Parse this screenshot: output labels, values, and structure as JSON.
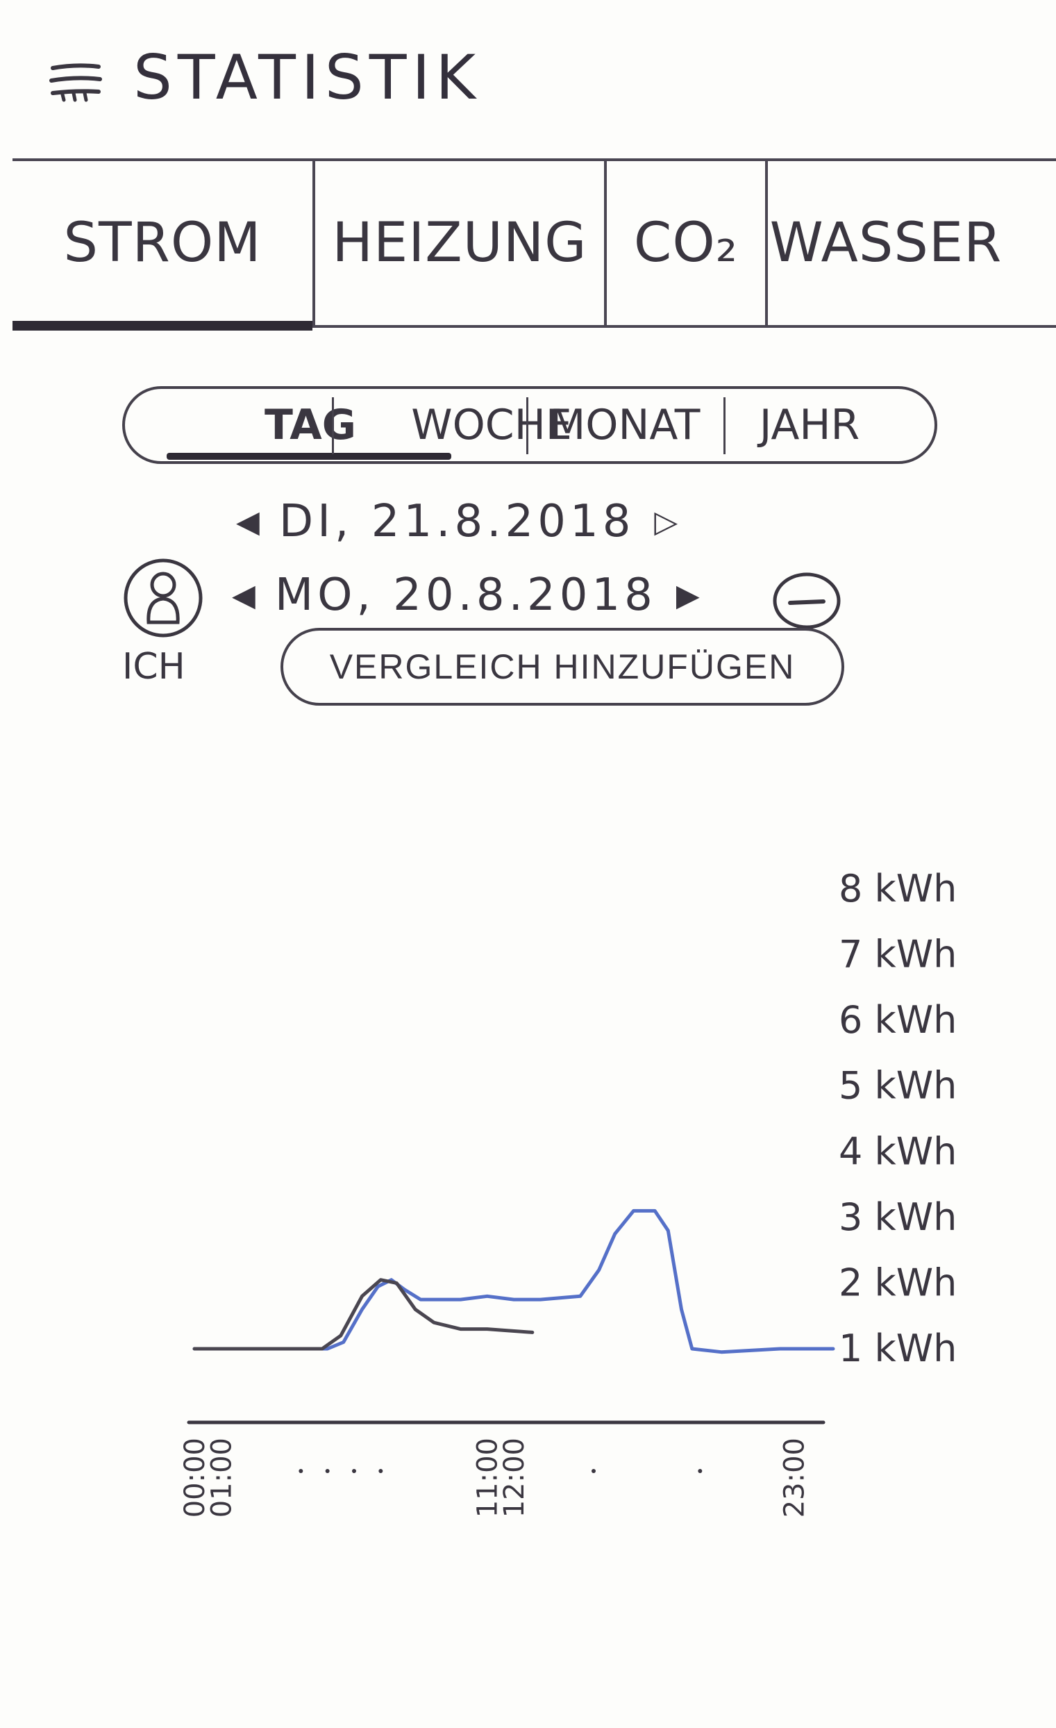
{
  "header": {
    "title": "STATISTIK",
    "menu_icon": "hamburger-menu-icon"
  },
  "tabs": [
    {
      "label": "STROM",
      "active": true
    },
    {
      "label": "HEIZUNG",
      "active": false
    },
    {
      "label": "CO₂",
      "active": false
    },
    {
      "label": "WASSER",
      "active": false
    }
  ],
  "periods": [
    {
      "label": "TAG",
      "active": true
    },
    {
      "label": "WOCHE",
      "active": false
    },
    {
      "label": "MONAT",
      "active": false
    },
    {
      "label": "JAHR",
      "active": false
    }
  ],
  "dates": {
    "primary": "DI, 21.8.2018",
    "comparison": "MO, 20.8.2018"
  },
  "user": {
    "label": "ICH",
    "icon": "person-icon"
  },
  "compare_button": "VERGLEICH HINZUFÜGEN",
  "colors": {
    "primary_series": "#5570c8",
    "comparison_series": "#4a4650",
    "ink": "#3a3640"
  },
  "chart_data": {
    "type": "line",
    "y_ticks": [
      "8 kWh",
      "7 kWh",
      "6 kWh",
      "5 kWh",
      "4 kWh",
      "3 kWh",
      "2 kWh",
      "1 kWh"
    ],
    "x_ticks": [
      "00:00",
      "01:00",
      "11:00",
      "12:00",
      "23:00"
    ],
    "ylim": [
      1,
      8
    ],
    "xlim": [
      0,
      24
    ],
    "y_axis_position": "right",
    "grid": false,
    "series": [
      {
        "color": "#5570c8",
        "points": [
          [
            0,
            1.0
          ],
          [
            5.0,
            1.0
          ],
          [
            5.6,
            1.1
          ],
          [
            6.3,
            1.6
          ],
          [
            6.9,
            1.95
          ],
          [
            7.4,
            2.05
          ],
          [
            7.9,
            1.9
          ],
          [
            8.5,
            1.75
          ],
          [
            10.0,
            1.75
          ],
          [
            11.0,
            1.8
          ],
          [
            12.0,
            1.75
          ],
          [
            13.0,
            1.75
          ],
          [
            14.5,
            1.8
          ],
          [
            15.2,
            2.2
          ],
          [
            15.8,
            2.75
          ],
          [
            16.5,
            3.1
          ],
          [
            17.3,
            3.1
          ],
          [
            17.8,
            2.8
          ],
          [
            18.3,
            1.6
          ],
          [
            18.7,
            1.0
          ],
          [
            19.8,
            0.95
          ],
          [
            22.0,
            1.0
          ],
          [
            24.0,
            1.0
          ]
        ]
      },
      {
        "color": "#4a4650",
        "points": [
          [
            0,
            1.0
          ],
          [
            4.8,
            1.0
          ],
          [
            5.5,
            1.2
          ],
          [
            6.3,
            1.8
          ],
          [
            7.0,
            2.05
          ],
          [
            7.6,
            2.0
          ],
          [
            8.3,
            1.6
          ],
          [
            9.0,
            1.4
          ],
          [
            10.0,
            1.3
          ],
          [
            11.0,
            1.3
          ],
          [
            12.7,
            1.25
          ]
        ]
      }
    ]
  }
}
